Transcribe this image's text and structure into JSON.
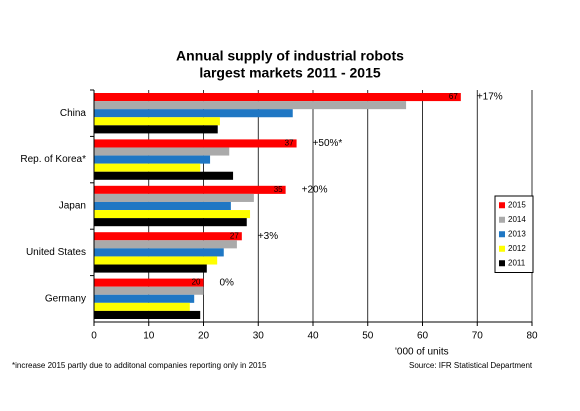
{
  "chart_data": {
    "type": "hbar",
    "title": [
      "Annual supply of industrial robots",
      "largest markets 2011 - 2015"
    ],
    "categories": [
      "China",
      "Rep. of Korea*",
      "Japan",
      "United States",
      "Germany"
    ],
    "series": [
      {
        "name": "2015",
        "color": "#ff0000",
        "values": [
          67,
          37,
          35,
          27,
          20
        ]
      },
      {
        "name": "2014",
        "color": "#aaaaaa",
        "values": [
          57,
          24.7,
          29.2,
          26.1,
          20
        ]
      },
      {
        "name": "2013",
        "color": "#1f77c4",
        "values": [
          36.3,
          21.2,
          25,
          23.7,
          18.3
        ]
      },
      {
        "name": "2012",
        "color": "#ffff00",
        "values": [
          23,
          19.4,
          28.5,
          22.5,
          17.5
        ]
      },
      {
        "name": "2011",
        "color": "#000000",
        "values": [
          22.6,
          25.4,
          27.9,
          20.6,
          19.4
        ]
      }
    ],
    "data_labels_series": 0,
    "annotations": [
      "+17%",
      "+50%*",
      "+20%",
      "+3%",
      "0%"
    ],
    "xlim": [
      0,
      80
    ],
    "xticks": [
      0,
      10,
      20,
      30,
      40,
      50,
      60,
      70,
      80
    ],
    "xlabel": "'000 of units",
    "grid": true,
    "legend": "right",
    "footnote": "*increase 2015 partly  due to additonal companies reporting only in 2015",
    "source": "Source: IFR Statistical Department"
  }
}
